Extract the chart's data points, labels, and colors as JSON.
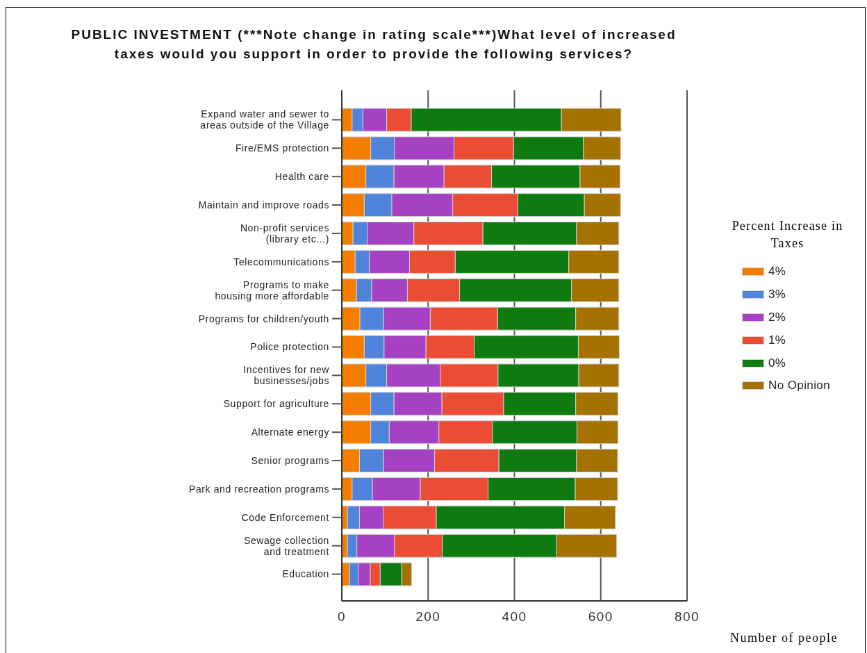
{
  "chart_data": {
    "type": "bar",
    "orientation": "horizontal",
    "stacked": true,
    "title": "PUBLIC INVESTMENT (***Note change in rating scale***)What level of increased taxes would you support in order to provide the following services?",
    "xlabel": "Number of people",
    "legend_title": "Percent Increase in Taxes",
    "categories": [
      "Expand water and sewer to areas outside of the Village",
      "Fire/EMS protection",
      "Health care",
      "Maintain and improve roads",
      "Non-profit services (library etc...)",
      "Telecommunications",
      "Programs to make housing more affordable",
      "Programs for children/youth",
      "Police protection",
      "Incentives for new businesses/jobs",
      "Support for agriculture",
      "Alternate energy",
      "Senior programs",
      "Park and recreation programs",
      "Code Enforcement",
      "Sewage collection and treatment",
      "Education"
    ],
    "series": [
      {
        "name": "4%",
        "color": "#f27d00",
        "values": [
          24,
          67,
          56,
          52,
          26,
          31,
          34,
          42,
          52,
          56,
          67,
          67,
          41,
          24,
          13,
          13,
          18
        ]
      },
      {
        "name": "3%",
        "color": "#4f83dc",
        "values": [
          25,
          55,
          65,
          64,
          33,
          33,
          35,
          55,
          46,
          48,
          54,
          43,
          56,
          47,
          28,
          22,
          20
        ]
      },
      {
        "name": "2%",
        "color": "#a541c2",
        "values": [
          55,
          138,
          116,
          141,
          108,
          93,
          83,
          108,
          97,
          124,
          111,
          115,
          118,
          111,
          55,
          87,
          28
        ]
      },
      {
        "name": "1%",
        "color": "#ea4d33",
        "values": [
          57,
          138,
          110,
          151,
          160,
          106,
          121,
          156,
          112,
          134,
          143,
          124,
          149,
          157,
          123,
          111,
          23
        ]
      },
      {
        "name": "0%",
        "color": "#0f7a0f",
        "values": [
          348,
          162,
          205,
          154,
          217,
          263,
          259,
          181,
          241,
          187,
          167,
          196,
          180,
          202,
          297,
          265,
          50
        ]
      },
      {
        "name": "No Opinion",
        "color": "#a57100",
        "values": [
          138,
          86,
          93,
          84,
          98,
          116,
          110,
          100,
          95,
          93,
          98,
          95,
          95,
          98,
          118,
          139,
          23
        ]
      }
    ],
    "xlim": [
      0,
      800
    ],
    "xticks": [
      0,
      200,
      400,
      600,
      800
    ],
    "grid": "x",
    "legend": "right"
  }
}
